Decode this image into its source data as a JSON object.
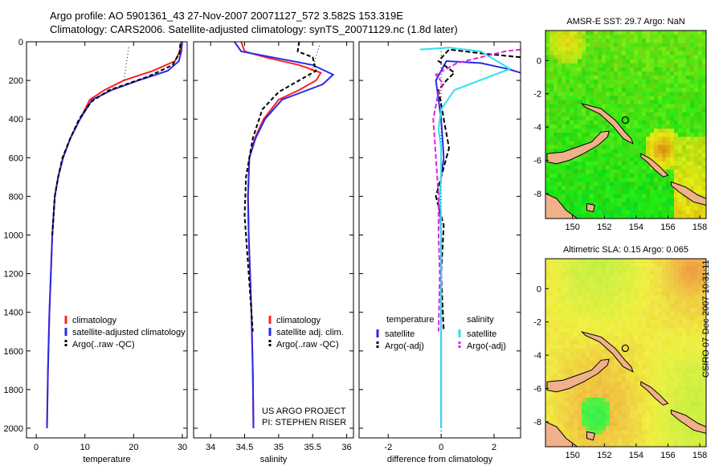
{
  "header": {
    "line1": "Argo profile: AO 5901361_43 27-Nov-2007 20071127_572 3.582S 153.319E",
    "line2": "Climatology: CARS2006. Satellite-adjusted climatology: synTS_20071129.nc (1.8d later)"
  },
  "stamp": "CSIRO 07-Dec-2007 10:31:11",
  "colors": {
    "climatology": "#ff2020",
    "satellite": "#2a2ae8",
    "argo": "#000000",
    "satellite_s": "#30e0f0",
    "argo_s": "#e020e0"
  },
  "chart_data": [
    {
      "type": "line",
      "id": "temperature",
      "xlabel": "temperature",
      "xlim": [
        -2,
        31
      ],
      "ylim": [
        2050,
        0
      ],
      "xticks": [
        0,
        10,
        20,
        30
      ],
      "yticks": [
        0,
        200,
        400,
        600,
        800,
        1000,
        1200,
        1400,
        1600,
        1800,
        2000
      ],
      "series": [
        {
          "name": "climatology",
          "color": "#ff2020",
          "dash": "",
          "x": [
            29.8,
            29.5,
            28.5,
            24,
            18,
            14,
            11,
            9,
            7,
            5.5,
            4.5,
            3.8,
            3.3,
            3,
            2.7,
            2.4,
            2.2
          ],
          "y": [
            0,
            50,
            100,
            150,
            200,
            250,
            300,
            400,
            500,
            600,
            700,
            800,
            1000,
            1200,
            1400,
            1700,
            2000
          ]
        },
        {
          "name": "satellite-adjusted climatology",
          "color": "#2a2ae8",
          "dash": "",
          "x": [
            30,
            29.8,
            29.3,
            27,
            21,
            15.5,
            11.5,
            9,
            7,
            5.5,
            4.5,
            3.8,
            3.3,
            3,
            2.7,
            2.4,
            2.2
          ],
          "y": [
            0,
            50,
            100,
            150,
            200,
            250,
            300,
            400,
            500,
            600,
            700,
            800,
            1000,
            1200,
            1400,
            1700,
            2000
          ]
        },
        {
          "name": "Argo(..raw -QC)",
          "color": "#000000",
          "dash": "5,3",
          "x": [
            29.6,
            29.4,
            28,
            23,
            15,
            11.3,
            8.8,
            7,
            5.4,
            4.5,
            3.8,
            3.3
          ],
          "y": [
            10,
            60,
            120,
            180,
            250,
            310,
            400,
            500,
            600,
            700,
            800,
            1000
          ]
        },
        {
          "name": "raw",
          "color": "#000000",
          "dash": "1,3",
          "x": [
            19,
            18
          ],
          "y": [
            30,
            200
          ]
        },
        {
          "name": "raw",
          "color": "#000000",
          "dash": "1,3",
          "x": [
            29.6,
            29.2
          ],
          "y": [
            30,
            80
          ]
        }
      ],
      "legend": [
        "climatology",
        "satellite-adjusted climatology",
        "Argo(..raw -QC)"
      ]
    },
    {
      "type": "line",
      "id": "salinity",
      "xlabel": "salinity",
      "xlim": [
        33.75,
        36.1
      ],
      "ylim": [
        2050,
        0
      ],
      "xticks": [
        34,
        34.5,
        35,
        35.5,
        36
      ],
      "series": [
        {
          "name": "climatology",
          "color": "#ff2020",
          "dash": "",
          "x": [
            34.45,
            34.5,
            34.8,
            35.3,
            35.62,
            35.55,
            35.3,
            35.0,
            34.78,
            34.65,
            34.57,
            34.55,
            34.56,
            34.58,
            34.6,
            34.62,
            34.63
          ],
          "y": [
            0,
            50,
            80,
            120,
            160,
            200,
            250,
            300,
            400,
            500,
            600,
            800,
            1000,
            1200,
            1400,
            1700,
            2000
          ]
        },
        {
          "name": "satellite adj. clim.",
          "color": "#2a2ae8",
          "dash": "",
          "x": [
            34.35,
            34.45,
            34.9,
            35.5,
            35.8,
            35.65,
            35.35,
            35.05,
            34.8,
            34.66,
            34.57,
            34.55,
            34.56,
            34.58,
            34.6,
            34.62,
            34.63
          ],
          "y": [
            0,
            50,
            80,
            120,
            170,
            220,
            260,
            300,
            400,
            500,
            600,
            800,
            1000,
            1200,
            1400,
            1700,
            2000
          ]
        },
        {
          "name": "Argo(..raw -QC)",
          "color": "#000000",
          "dash": "5,3",
          "x": [
            35.3,
            35.28,
            35.5,
            35.55,
            35.3,
            35.0,
            34.76,
            34.62,
            34.52,
            34.5,
            34.54,
            34.58,
            34.62
          ],
          "y": [
            0,
            50,
            80,
            150,
            200,
            260,
            350,
            500,
            700,
            900,
            1100,
            1300,
            1500
          ]
        },
        {
          "name": "raw",
          "color": "#000000",
          "dash": "1,3",
          "x": [
            35.6,
            35.45
          ],
          "y": [
            20,
            190
          ]
        }
      ],
      "legend": [
        "climatology",
        "satellite adj. clim.",
        "Argo(..raw -QC)"
      ],
      "annotation": [
        "US ARGO PROJECT",
        "PI: STEPHEN RISER"
      ]
    },
    {
      "type": "line",
      "id": "difference",
      "xlabel": "difference from climatology",
      "xlim": [
        -3.1,
        3.0
      ],
      "ylim": [
        2050,
        0
      ],
      "xticks": [
        -2,
        0,
        2
      ],
      "series": [
        {
          "name": "satellite",
          "color": "#2a2ae8",
          "dash": "",
          "x": [
            3.0,
            2.5,
            1.5,
            0.2,
            -0.2,
            -0.1,
            0.0,
            0.05,
            0.1,
            0.0,
            -0.05,
            0.0,
            0.0,
            0.0,
            0.0,
            0.0
          ],
          "y": [
            160,
            140,
            110,
            100,
            200,
            300,
            400,
            500,
            600,
            700,
            800,
            1000,
            1200,
            1400,
            1700,
            2000
          ]
        },
        {
          "name": "temperature Argo(-adj)",
          "color": "#000000",
          "dash": "6,3",
          "x": [
            3.0,
            1.5,
            0.3,
            -0.1,
            0.5,
            0.2,
            -0.1,
            0.1,
            0.3,
            0.1,
            -0.2,
            0.1,
            0.0,
            0.1
          ],
          "y": [
            80,
            60,
            40,
            100,
            160,
            200,
            250,
            400,
            550,
            650,
            800,
            950,
            1200,
            1500
          ]
        },
        {
          "name": "salinity satellite",
          "color": "#30e0f0",
          "dash": "",
          "x": [
            -0.8,
            0.3,
            1.5,
            2.6,
            0.5,
            0.0,
            -0.1,
            0.0,
            0.0,
            -0.05,
            0.0,
            0.0,
            0.0,
            0.0,
            0.0
          ],
          "y": [
            40,
            30,
            50,
            140,
            250,
            350,
            450,
            550,
            700,
            800,
            900,
            1100,
            1400,
            1700,
            2000
          ]
        },
        {
          "name": "salinity Argo(-adj)",
          "color": "#e020e0",
          "dash": "6,3",
          "x": [
            3.0,
            2.4,
            1.8,
            0.6,
            -0.2,
            0.1,
            -0.1,
            -0.3,
            -0.2,
            -0.1,
            -0.1,
            -0.05,
            -0.1
          ],
          "y": [
            40,
            50,
            70,
            110,
            170,
            220,
            260,
            400,
            600,
            800,
            1000,
            1200,
            1500
          ]
        }
      ],
      "legend_titles": [
        "temperature",
        "salinity"
      ],
      "legend": [
        "satellite",
        "Argo(-adj)",
        "satellite",
        "Argo(-adj)"
      ]
    },
    {
      "type": "heatmap",
      "id": "sst",
      "title": "AMSR-E SST: 29.7 Argo: NaN",
      "xlim": [
        148.3,
        158.4
      ],
      "ylim": [
        -9.5,
        1.8
      ],
      "xticks": [
        150,
        152,
        154,
        156,
        158
      ],
      "yticks": [
        0,
        -2,
        -4,
        -6,
        -8
      ],
      "argo_position": [
        153.319,
        -3.582
      ]
    },
    {
      "type": "heatmap",
      "id": "sla",
      "title": "Altimetric SLA: 0.15 Argo: 0.065",
      "xlim": [
        148.3,
        158.4
      ],
      "ylim": [
        -9.5,
        1.8
      ],
      "xticks": [
        150,
        152,
        154,
        156,
        158
      ],
      "yticks": [
        0,
        -2,
        -4,
        -6,
        -8
      ],
      "argo_position": [
        153.319,
        -3.582
      ]
    }
  ]
}
